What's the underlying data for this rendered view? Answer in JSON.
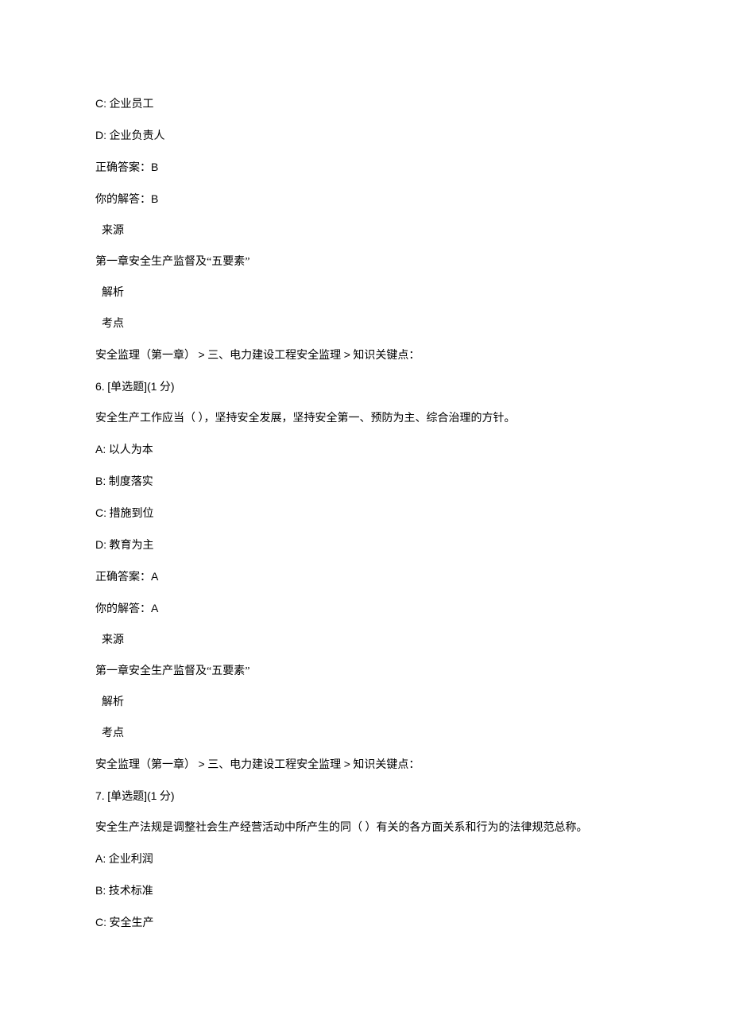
{
  "lines": [
    {
      "text": "C:  企业员工",
      "indent": false
    },
    {
      "text": "D:  企业负责人",
      "indent": false
    },
    {
      "text": "正确答案：B",
      "indent": false
    },
    {
      "text": "你的解答：B",
      "indent": false
    },
    {
      "text": "来源",
      "indent": true
    },
    {
      "text": "第一章安全生产监督及“五要素”",
      "indent": false
    },
    {
      "text": "解析",
      "indent": true
    },
    {
      "text": "考点",
      "indent": true
    },
    {
      "text": "安全监理（第一章）  >  三、电力建设工程安全监理  >  知识关键点：",
      "indent": false
    },
    {
      "text": "6. [单选题](1 分)",
      "indent": false
    },
    {
      "text": "安全生产工作应当（  ），坚持安全发展，坚持安全第一、预防为主、综合治理的方针。",
      "indent": false
    },
    {
      "text": "A:  以人为本",
      "indent": false
    },
    {
      "text": "B:  制度落实",
      "indent": false
    },
    {
      "text": "C:  措施到位",
      "indent": false
    },
    {
      "text": "D:  教育为主",
      "indent": false
    },
    {
      "text": "正确答案：A",
      "indent": false
    },
    {
      "text": "你的解答：A",
      "indent": false
    },
    {
      "text": "来源",
      "indent": true
    },
    {
      "text": "第一章安全生产监督及“五要素”",
      "indent": false
    },
    {
      "text": "解析",
      "indent": true
    },
    {
      "text": "考点",
      "indent": true
    },
    {
      "text": "安全监理（第一章）  >  三、电力建设工程安全监理  >  知识关键点：",
      "indent": false
    },
    {
      "text": "7. [单选题](1 分)",
      "indent": false
    },
    {
      "text": "安全生产法规是调整社会生产经营活动中所产生的同（  ）有关的各方面关系和行为的法律规范总称。",
      "indent": false
    },
    {
      "text": "A:  企业利润",
      "indent": false
    },
    {
      "text": "B:  技术标准",
      "indent": false
    },
    {
      "text": "C:  安全生产",
      "indent": false
    }
  ]
}
